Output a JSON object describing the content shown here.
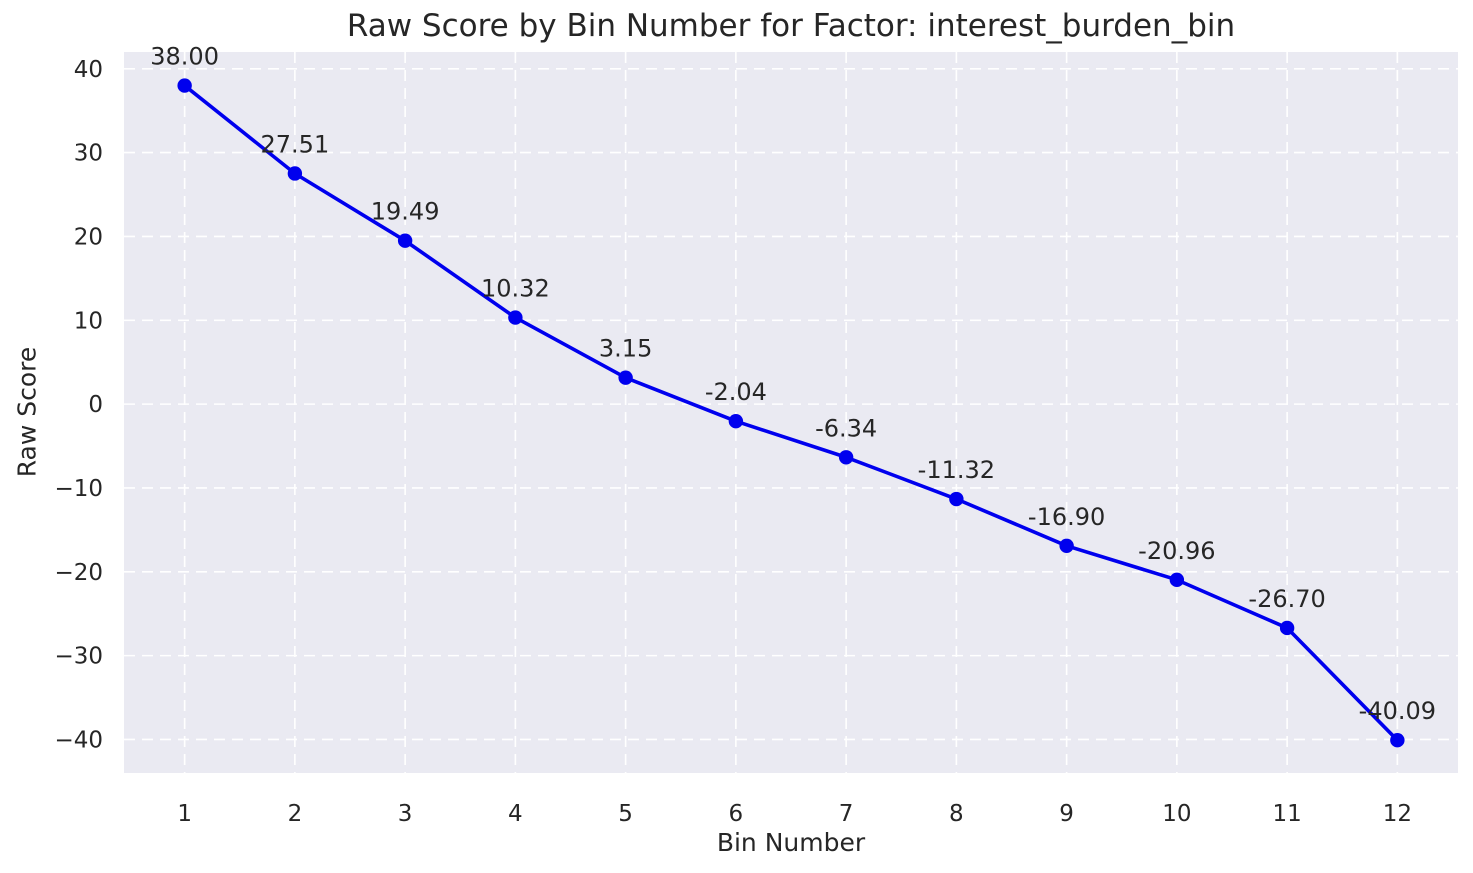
{
  "figure": {
    "title": "Raw Score by Bin Number for Factor: interest_burden_bin",
    "xlabel": "Bin Number",
    "ylabel": "Raw Score"
  },
  "chart_data": {
    "type": "line",
    "title": "Raw Score by Bin Number for Factor: interest_burden_bin",
    "xlabel": "Bin Number",
    "ylabel": "Raw Score",
    "x": [
      1,
      2,
      3,
      4,
      5,
      6,
      7,
      8,
      9,
      10,
      11,
      12
    ],
    "y": [
      38.0,
      27.51,
      19.49,
      10.32,
      3.15,
      -2.04,
      -6.34,
      -11.32,
      -16.9,
      -20.96,
      -26.7,
      -40.09
    ],
    "point_labels": [
      "38.00",
      "27.51",
      "19.49",
      "10.32",
      "3.15",
      "-2.04",
      "-6.34",
      "-11.32",
      "-16.90",
      "-20.96",
      "-26.70",
      "-40.09"
    ],
    "xticks": [
      1,
      2,
      3,
      4,
      5,
      6,
      7,
      8,
      9,
      10,
      11,
      12
    ],
    "xtick_labels": [
      "1",
      "2",
      "3",
      "4",
      "5",
      "6",
      "7",
      "8",
      "9",
      "10",
      "11",
      "12"
    ],
    "yticks": [
      40,
      30,
      20,
      10,
      0,
      -10,
      -20,
      -30,
      -40
    ],
    "ytick_labels": [
      "40",
      "30",
      "20",
      "10",
      "0",
      "−10",
      "−20",
      "−30",
      "−40"
    ],
    "xlim": [
      0.45,
      12.55
    ],
    "ylim": [
      -44,
      42
    ],
    "grid": true,
    "grid_style": "dashed",
    "legend": "none",
    "colors": {
      "line": "#0000EE",
      "marker": "#0000EE",
      "plot_background": "#EAEAF2",
      "figure_background": "#FFFFFF",
      "grid": "#FFFFFF",
      "text": "#262626"
    }
  }
}
